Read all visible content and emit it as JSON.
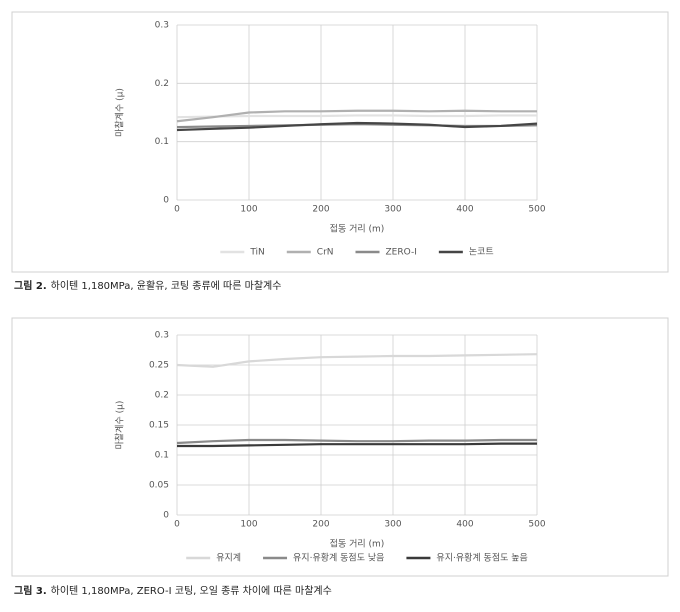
{
  "chart_data": [
    {
      "type": "line",
      "y_label": "마찰계수 (μ)",
      "x_label": "접동 거리 (m)",
      "caption_label": "그림 2.",
      "caption": "하이텐 1,180MPa, 윤활유, 코팅 종류에 따른 마찰계수",
      "x": [
        0,
        50,
        100,
        150,
        200,
        250,
        300,
        350,
        400,
        450,
        500
      ],
      "xlim": [
        0,
        500
      ],
      "xticks": [
        0,
        100,
        200,
        300,
        400,
        500
      ],
      "ylim": [
        0,
        0.3
      ],
      "yticks": [
        0,
        0.1,
        0.2,
        0.3
      ],
      "grid": true,
      "series": [
        {
          "name": "TiN",
          "color": "#e2e2e2",
          "values": [
            0.142,
            0.143,
            0.144,
            0.144,
            0.144,
            0.145,
            0.145,
            0.144,
            0.144,
            0.145,
            0.145
          ]
        },
        {
          "name": "CrN",
          "color": "#b0b0b0",
          "values": [
            0.135,
            0.142,
            0.15,
            0.152,
            0.152,
            0.153,
            0.153,
            0.152,
            0.153,
            0.152,
            0.152
          ]
        },
        {
          "name": "ZERO-Ⅰ",
          "color": "#8a8a8a",
          "values": [
            0.125,
            0.126,
            0.127,
            0.128,
            0.129,
            0.13,
            0.129,
            0.128,
            0.127,
            0.127,
            0.128
          ]
        },
        {
          "name": "논코트",
          "color": "#454545",
          "values": [
            0.12,
            0.122,
            0.124,
            0.127,
            0.13,
            0.132,
            0.131,
            0.129,
            0.125,
            0.127,
            0.131
          ]
        }
      ]
    },
    {
      "type": "line",
      "y_label": "마찰계수 (μ)",
      "x_label": "접동 거리 (m)",
      "caption_label": "그림 3.",
      "caption": "하이텐 1,180MPa, ZERO-Ⅰ 코팅, 오일 종류 차이에 따른 마찰계수",
      "x": [
        0,
        50,
        100,
        150,
        200,
        250,
        300,
        350,
        400,
        450,
        500
      ],
      "xlim": [
        0,
        500
      ],
      "xticks": [
        0,
        100,
        200,
        300,
        400,
        500
      ],
      "ylim": [
        0,
        0.3
      ],
      "yticks": [
        0,
        0.05,
        0.1,
        0.15,
        0.2,
        0.25,
        0.3
      ],
      "grid": true,
      "series": [
        {
          "name": "유지계",
          "color": "#d8d8d8",
          "values": [
            0.25,
            0.247,
            0.256,
            0.26,
            0.263,
            0.264,
            0.265,
            0.265,
            0.266,
            0.267,
            0.268
          ]
        },
        {
          "name": "유지·유황계 동점도 낮음",
          "color": "#8a8a8a",
          "values": [
            0.12,
            0.123,
            0.125,
            0.125,
            0.124,
            0.123,
            0.123,
            0.124,
            0.124,
            0.125,
            0.125
          ]
        },
        {
          "name": "유지·유황계 동점도 높음",
          "color": "#3a3a3a",
          "values": [
            0.115,
            0.115,
            0.116,
            0.117,
            0.118,
            0.118,
            0.118,
            0.118,
            0.118,
            0.119,
            0.119
          ]
        }
      ]
    }
  ]
}
